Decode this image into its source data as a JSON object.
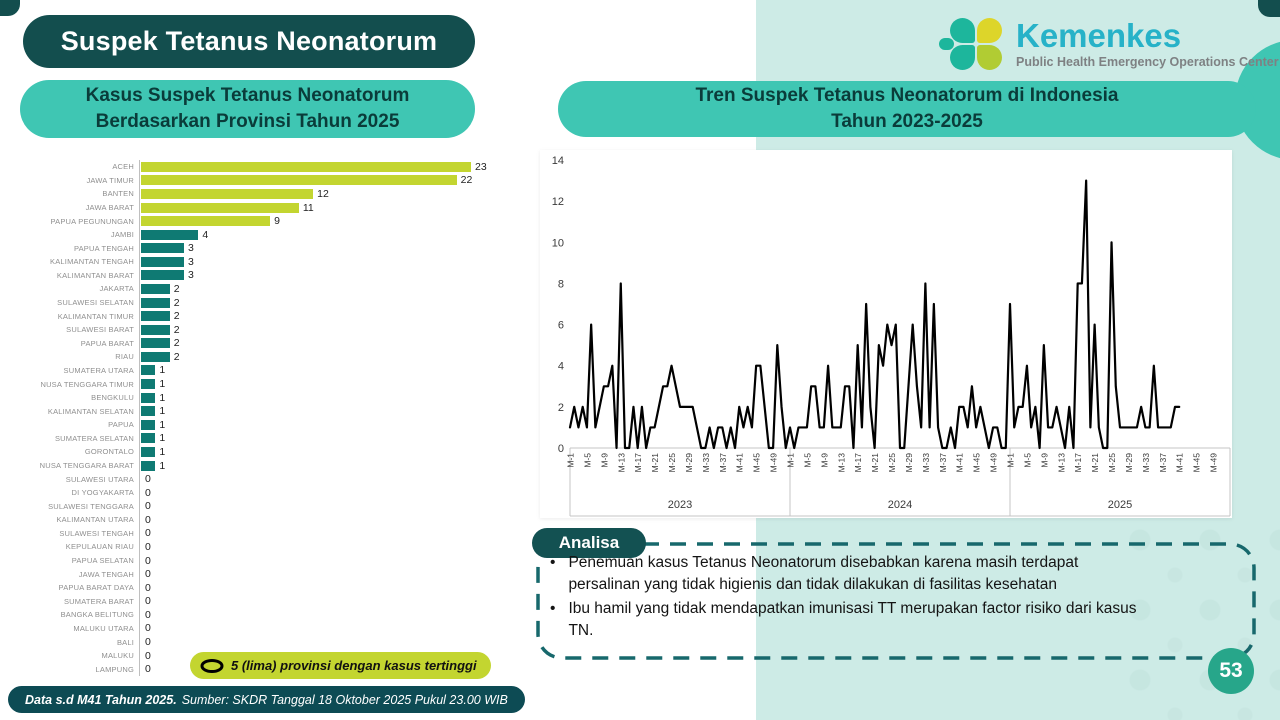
{
  "page": {
    "title": "Suspek Tetanus Neonatorum",
    "page_number": "53"
  },
  "logo": {
    "name": "Kemenkes",
    "subtitle": "Public Health Emergency Operations Center"
  },
  "left_panel": {
    "header_line1": "Kasus Suspek Tetanus Neonatorum",
    "header_line2": "Berdasarkan Provinsi Tahun 2025",
    "legend": "5 (lima) provinsi dengan kasus tertinggi"
  },
  "right_panel": {
    "header_line1": "Tren Suspek Tetanus Neonatorum di Indonesia",
    "header_line2": "Tahun 2023-2025"
  },
  "analisa": {
    "title": "Analisa",
    "bullets": [
      "Penemuan kasus Tetanus Neonatorum disebabkan karena masih terdapat persalinan yang tidak higienis dan tidak dilakukan di fasilitas kesehatan",
      "Ibu hamil yang tidak mendapatkan imunisasi TT merupakan factor risiko dari kasus TN."
    ]
  },
  "footer": {
    "bold": "Data s.d M41 Tahun 2025.",
    "rest": "Sumber: SKDR Tanggal 18 Oktober 2025 Pukul 23.00 WIB"
  },
  "colors": {
    "dark_teal": "#134e4e",
    "turquoise": "#3fc6b3",
    "mint_bg": "#cdebe6",
    "lime": "#c3d530",
    "teal_bar": "#0f7a73",
    "line": "#000000",
    "footer_bg": "#0d4b54",
    "page_badge": "#27a68a"
  },
  "chart_data": [
    {
      "type": "bar",
      "orientation": "horizontal",
      "title": "Kasus Suspek Tetanus Neonatorum Berdasarkan Provinsi Tahun 2025",
      "highlight_top_n": 5,
      "highlight_color": "#c3d530",
      "bar_color": "#0f7a73",
      "categories": [
        "ACEH",
        "JAWA TIMUR",
        "BANTEN",
        "JAWA BARAT",
        "PAPUA PEGUNUNGAN",
        "JAMBI",
        "PAPUA TENGAH",
        "KALIMANTAN TENGAH",
        "KALIMANTAN BARAT",
        "JAKARTA",
        "SULAWESI SELATAN",
        "KALIMANTAN TIMUR",
        "SULAWESI BARAT",
        "PAPUA BARAT",
        "RIAU",
        "SUMATERA UTARA",
        "NUSA TENGGARA TIMUR",
        "BENGKULU",
        "KALIMANTAN SELATAN",
        "PAPUA",
        "SUMATERA SELATAN",
        "GORONTALO",
        "NUSA TENGGARA BARAT",
        "SULAWESI UTARA",
        "DI YOGYAKARTA",
        "SULAWESI TENGGARA",
        "KALIMANTAN UTARA",
        "SULAWESI TENGAH",
        "KEPULAUAN RIAU",
        "PAPUA SELATAN",
        "JAWA TENGAH",
        "PAPUA BARAT DAYA",
        "SUMATERA BARAT",
        "BANGKA BELITUNG",
        "MALUKU UTARA",
        "BALI",
        "MALUKU",
        "LAMPUNG"
      ],
      "values": [
        23,
        22,
        12,
        11,
        9,
        4,
        3,
        3,
        3,
        2,
        2,
        2,
        2,
        2,
        2,
        1,
        1,
        1,
        1,
        1,
        1,
        1,
        1,
        0,
        0,
        0,
        0,
        0,
        0,
        0,
        0,
        0,
        0,
        0,
        0,
        0,
        0,
        0
      ],
      "xlim": [
        0,
        23
      ]
    },
    {
      "type": "line",
      "title": "Tren Suspek Tetanus Neonatorum di Indonesia Tahun 2023-2025",
      "ylabel": "",
      "ylim": [
        0,
        14
      ],
      "y_ticks": [
        0,
        2,
        4,
        6,
        8,
        10,
        12,
        14
      ],
      "x_tick_labels_per_year": [
        "M-1",
        "M-5",
        "M-9",
        "M-13",
        "M-17",
        "M-21",
        "M-25",
        "M-29",
        "M-33",
        "M-37",
        "M-41",
        "M-45",
        "M-49"
      ],
      "weeks_per_year_axis": 52,
      "legend_position": "none",
      "grid": false,
      "series": [
        {
          "name": "2023",
          "values": [
            1,
            2,
            1,
            2,
            1,
            6,
            1,
            2,
            3,
            3,
            4,
            0,
            8,
            0,
            0,
            2,
            0,
            2,
            0,
            1,
            1,
            2,
            3,
            3,
            4,
            3,
            2,
            2,
            2,
            2,
            1,
            0,
            0,
            1,
            0,
            1,
            1,
            0,
            1,
            0,
            2,
            1,
            2,
            1,
            4,
            4,
            2,
            0,
            0,
            5,
            2,
            0
          ]
        },
        {
          "name": "2024",
          "values": [
            1,
            0,
            1,
            1,
            1,
            3,
            3,
            1,
            1,
            4,
            1,
            1,
            1,
            3,
            3,
            0,
            5,
            1,
            7,
            2,
            0,
            5,
            4,
            6,
            5,
            6,
            0,
            0,
            3,
            6,
            3,
            1,
            8,
            1,
            7,
            1,
            0,
            0,
            1,
            0,
            2,
            2,
            1,
            3,
            1,
            2,
            1,
            0,
            1,
            1,
            0,
            0
          ]
        },
        {
          "name": "2025",
          "values": [
            7,
            1,
            2,
            2,
            4,
            1,
            2,
            0,
            5,
            1,
            1,
            2,
            1,
            0,
            2,
            0,
            8,
            8,
            13,
            1,
            6,
            1,
            0,
            0,
            10,
            3,
            1,
            1,
            1,
            1,
            1,
            2,
            1,
            1,
            4,
            1,
            1,
            1,
            1,
            2,
            2
          ]
        }
      ]
    }
  ]
}
